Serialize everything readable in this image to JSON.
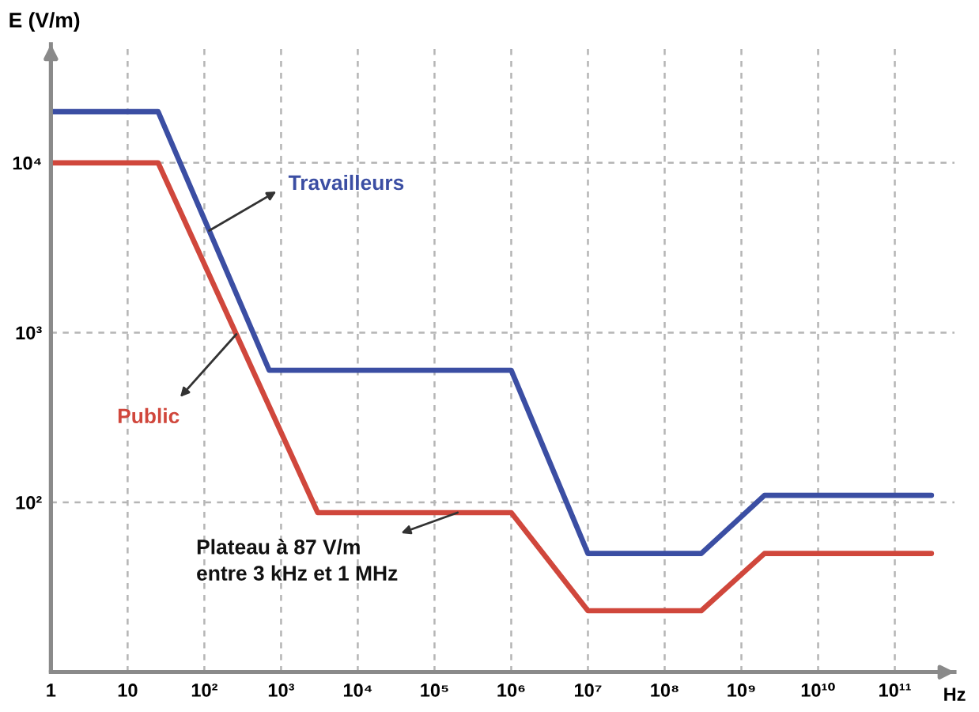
{
  "chart_data": {
    "type": "line",
    "xlabel": "Hz",
    "ylabel": "E (V/m)",
    "log": "xy",
    "xlim": [
      1,
      600000000000
    ],
    "ylim": [
      10,
      50000
    ],
    "xticks": [
      1,
      10,
      {
        "value": 100,
        "label": "10²"
      },
      {
        "value": 1000,
        "label": "10³"
      },
      {
        "value": 10000,
        "label": "10⁴"
      },
      {
        "value": 100000,
        "label": "10⁵"
      },
      {
        "value": 1000000,
        "label": "10⁶"
      },
      {
        "value": 10000000,
        "label": "10⁷"
      },
      {
        "value": 100000000,
        "label": "10⁸"
      },
      {
        "value": 1000000000,
        "label": "10⁹"
      },
      {
        "value": 10000000000,
        "label": "10¹⁰"
      },
      {
        "value": 100000000000,
        "label": "10¹¹"
      }
    ],
    "yticks": [
      {
        "value": 100,
        "label": "10²"
      },
      {
        "value": 1000,
        "label": "10³"
      },
      {
        "value": 10000,
        "label": "10⁴"
      }
    ],
    "grid": true,
    "line_style": "solid",
    "series": [
      {
        "name": "Travailleurs",
        "color": "#3b4ea3",
        "x": [
          1,
          25,
          700,
          1000000,
          10000000,
          300000000,
          2000000000,
          300000000000
        ],
        "values": [
          20000,
          20000,
          600,
          600,
          50,
          50,
          110,
          110
        ]
      },
      {
        "name": "Public",
        "color": "#d0473c",
        "x": [
          1,
          25,
          3000,
          1000000,
          10000000,
          300000000,
          2000000000,
          300000000000
        ],
        "values": [
          10000,
          10000,
          87,
          87,
          23,
          23,
          50,
          50
        ]
      }
    ],
    "annotations": [
      {
        "text": "Plateau à 87 V/m\nentre 3 kHz et 1 MHz",
        "x": 200000,
        "y": 87
      }
    ]
  }
}
